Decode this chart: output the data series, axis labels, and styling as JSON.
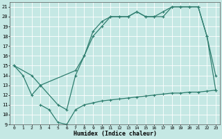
{
  "xlabel": "Humidex (Indice chaleur)",
  "xlim": [
    -0.5,
    23.5
  ],
  "ylim": [
    9,
    21.5
  ],
  "xticks": [
    0,
    1,
    2,
    3,
    4,
    5,
    6,
    7,
    8,
    9,
    10,
    11,
    12,
    13,
    14,
    15,
    16,
    17,
    18,
    19,
    20,
    21,
    22,
    23
  ],
  "yticks": [
    9,
    10,
    11,
    12,
    13,
    14,
    15,
    16,
    17,
    18,
    19,
    20,
    21
  ],
  "bg_color": "#c5e8e4",
  "line_color": "#2e7d6e",
  "line1_x": [
    0,
    1,
    2,
    3,
    5,
    6,
    7,
    8,
    9,
    10,
    11,
    12,
    13,
    14,
    15,
    16,
    17,
    18,
    19,
    20,
    21,
    22,
    23
  ],
  "line1_y": [
    15,
    14,
    12,
    13,
    11,
    10.5,
    14,
    16,
    18.5,
    19.5,
    20,
    20,
    20,
    20.5,
    20,
    20,
    20.5,
    21,
    21,
    21,
    21,
    18,
    14
  ],
  "line2_x": [
    0,
    2,
    3,
    7,
    8,
    9,
    10,
    11,
    12,
    13,
    14,
    15,
    16,
    17,
    18,
    19,
    20,
    21,
    22,
    23
  ],
  "line2_y": [
    15,
    14,
    13,
    14.5,
    16,
    18,
    19,
    20,
    20,
    20,
    20.5,
    20,
    20,
    20,
    21,
    21,
    21,
    21,
    18,
    12.5
  ],
  "line3_x": [
    3,
    4,
    5,
    6,
    7,
    8,
    9,
    10,
    11,
    12,
    13,
    14,
    15,
    16,
    17,
    18,
    19,
    20,
    21,
    22,
    23
  ],
  "line3_y": [
    11,
    10.5,
    9.2,
    9.0,
    10.5,
    11.0,
    11.2,
    11.4,
    11.5,
    11.6,
    11.7,
    11.8,
    11.9,
    12.0,
    12.1,
    12.2,
    12.2,
    12.3,
    12.3,
    12.4,
    12.5
  ]
}
